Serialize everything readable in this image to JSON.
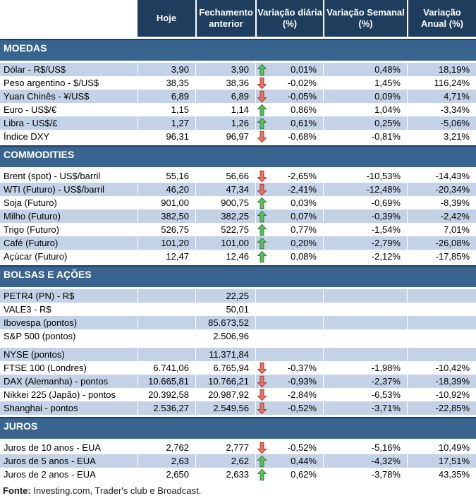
{
  "colors": {
    "header_bg": "#1F3D5C",
    "section_bg": "#38648F",
    "stripe_bg": "#C3D2E7",
    "up_arrow_fill": "#5FBC60",
    "up_arrow_stroke": "#357F38",
    "down_arrow_fill": "#E4756A",
    "down_arrow_stroke": "#A93B2B"
  },
  "columns": [
    {
      "line1": "Hoje",
      "line2": ""
    },
    {
      "line1": "Fechamento",
      "line2": "anterior"
    },
    {
      "line1": "Variação diária",
      "line2": "(%)"
    },
    {
      "line1": "Variação Semanal",
      "line2": "(%)"
    },
    {
      "line1": "Variação",
      "line2": "Anual (%)"
    }
  ],
  "sections": [
    {
      "title": "MOEDAS",
      "rows": [
        {
          "label": "Dólar - R$/US$",
          "hoje": "3,90",
          "fechamento": "3,90",
          "arrow": "up",
          "diaria": "0,01%",
          "semanal": "0,48%",
          "anual": "18,19%"
        },
        {
          "label": "Peso argentino - $/US$",
          "hoje": "38,35",
          "fechamento": "38,36",
          "arrow": "down",
          "diaria": "-0,02%",
          "semanal": "1,45%",
          "anual": "116,24%"
        },
        {
          "label": "Yuan Chinês - ¥/US$",
          "hoje": "6,89",
          "fechamento": "6,89",
          "arrow": "down",
          "diaria": "-0,05%",
          "semanal": "0,09%",
          "anual": "4,71%"
        },
        {
          "label": "Euro - US$/€",
          "hoje": "1,15",
          "fechamento": "1,14",
          "arrow": "up",
          "diaria": "0,86%",
          "semanal": "1,04%",
          "anual": "-3,34%"
        },
        {
          "label": "Libra - US$/£",
          "hoje": "1,27",
          "fechamento": "1,26",
          "arrow": "up",
          "diaria": "0,61%",
          "semanal": "0,25%",
          "anual": "-5,06%"
        },
        {
          "label": "Índice DXY",
          "hoje": "96,31",
          "fechamento": "96,97",
          "arrow": "down",
          "diaria": "-0,68%",
          "semanal": "-0,81%",
          "anual": "3,21%"
        }
      ]
    },
    {
      "title": "COMMODITIES",
      "rows": [
        {
          "label": "Brent (spot) - US$/barril",
          "hoje": "55,16",
          "fechamento": "56,66",
          "arrow": "down",
          "diaria": "-2,65%",
          "semanal": "-10,53%",
          "anual": "-14,43%"
        },
        {
          "label": "WTI (Futuro) - US$/barril",
          "hoje": "46,20",
          "fechamento": "47,34",
          "arrow": "down",
          "diaria": "-2,41%",
          "semanal": "-12,48%",
          "anual": "-20,34%"
        },
        {
          "label": "Soja (Futuro)",
          "hoje": "901,00",
          "fechamento": "900,75",
          "arrow": "up",
          "diaria": "0,03%",
          "semanal": "-0,69%",
          "anual": "-8,39%"
        },
        {
          "label": "Milho (Futuro)",
          "hoje": "382,50",
          "fechamento": "382,25",
          "arrow": "up",
          "diaria": "0,07%",
          "semanal": "-0,39%",
          "anual": "-2,42%"
        },
        {
          "label": "Trigo (Futuro)",
          "hoje": "526,75",
          "fechamento": "522,75",
          "arrow": "up",
          "diaria": "0,77%",
          "semanal": "-1,54%",
          "anual": "7,01%"
        },
        {
          "label": "Café (Futuro)",
          "hoje": "101,20",
          "fechamento": "101,00",
          "arrow": "up",
          "diaria": "0,20%",
          "semanal": "-2,79%",
          "anual": "-26,08%"
        },
        {
          "label": "Açúcar (Futuro)",
          "hoje": "12,47",
          "fechamento": "12,46",
          "arrow": "up",
          "diaria": "0,08%",
          "semanal": "-2,12%",
          "anual": "-17,85%"
        }
      ]
    },
    {
      "title": "BOLSAS E AÇÕES",
      "rows": [
        {
          "label": "PETR4 (PN) - R$",
          "hoje": "",
          "fechamento": "22,25",
          "arrow": "none",
          "diaria": "",
          "semanal": "",
          "anual": ""
        },
        {
          "label": "VALE3 - R$",
          "hoje": "",
          "fechamento": "50,01",
          "arrow": "none",
          "diaria": "",
          "semanal": "",
          "anual": ""
        },
        {
          "label": "Ibovespa (pontos)",
          "hoje": "",
          "fechamento": "85.673,52",
          "arrow": "none",
          "diaria": "",
          "semanal": "",
          "anual": ""
        },
        {
          "label": "S&P 500 (pontos)",
          "hoje": "",
          "fechamento": "2.506,96",
          "arrow": "none",
          "diaria": "",
          "semanal": "",
          "anual": ""
        },
        {
          "label": "NYSE (pontos)",
          "hoje": "",
          "fechamento": "11.371,84",
          "arrow": "none",
          "diaria": "",
          "semanal": "",
          "anual": "",
          "gap_before": true
        },
        {
          "label": "FTSE 100 (Londres)",
          "hoje": "6.741,06",
          "fechamento": "6.765,94",
          "arrow": "down",
          "diaria": "-0,37%",
          "semanal": "-1,98%",
          "anual": "-10,42%"
        },
        {
          "label": "DAX (Alemanha) - pontos",
          "hoje": "10.665,81",
          "fechamento": "10.766,21",
          "arrow": "down",
          "diaria": "-0,93%",
          "semanal": "-2,37%",
          "anual": "-18,39%"
        },
        {
          "label": "Nikkei 225 (Japão) - pontos",
          "hoje": "20.392,58",
          "fechamento": "20.987,92",
          "arrow": "down",
          "diaria": "-2,84%",
          "semanal": "-6,53%",
          "anual": "-10,92%"
        },
        {
          "label": "Shanghai - pontos",
          "hoje": "2.536,27",
          "fechamento": "2.549,56",
          "arrow": "down",
          "diaria": "-0,52%",
          "semanal": "-3,71%",
          "anual": "-22,85%"
        }
      ]
    },
    {
      "title": "JUROS",
      "rows": [
        {
          "label": "Juros de 10 anos - EUA",
          "hoje": "2,762",
          "fechamento": "2,777",
          "arrow": "down",
          "diaria": "-0,52%",
          "semanal": "-5,16%",
          "anual": "10,49%"
        },
        {
          "label": "Juros de 5 anos - EUA",
          "hoje": "2,63",
          "fechamento": "2,62",
          "arrow": "up",
          "diaria": "0,44%",
          "semanal": "-4,32%",
          "anual": "17,51%"
        },
        {
          "label": "Juros de 2 anos - EUA",
          "hoje": "2,650",
          "fechamento": "2,633",
          "arrow": "up",
          "diaria": "0,62%",
          "semanal": "-3,78%",
          "anual": "43,35%"
        }
      ]
    }
  ],
  "footer": {
    "label": "Fonte:",
    "text": " Investing.com, Trader's club e Broadcast."
  }
}
